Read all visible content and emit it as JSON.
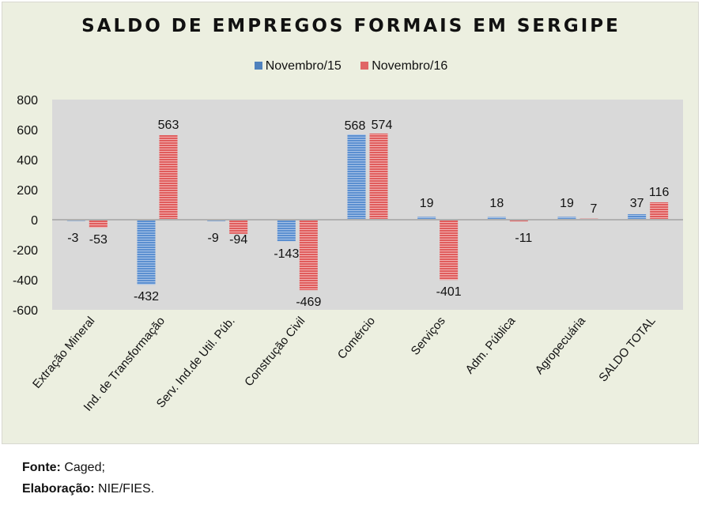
{
  "chart_data": {
    "type": "bar",
    "title": "SALDO DE EMPREGOS FORMAIS EM SERGIPE",
    "xlabel": "",
    "ylabel": "",
    "ylim": [
      -600,
      800
    ],
    "yticks": [
      800,
      600,
      400,
      200,
      0,
      -200,
      -400,
      -600
    ],
    "grid": false,
    "legend_position": "top-center",
    "categories": [
      "Extração Mineral",
      "Ind. de Transformação",
      "Serv. Ind.de Util. Púb.",
      "Construção Civil",
      "Comércio",
      "Serviços",
      "Adm. Pública",
      "Agropecuária",
      "SALDO TOTAL"
    ],
    "series": [
      {
        "name": "Novembro/15",
        "color": "#4f81bd",
        "values": [
          -3,
          -432,
          -9,
          -143,
          568,
          19,
          18,
          19,
          37
        ]
      },
      {
        "name": "Novembro/16",
        "color": "#e06666",
        "values": [
          -53,
          563,
          -94,
          -469,
          574,
          -401,
          -11,
          7,
          116
        ]
      }
    ]
  },
  "footer": {
    "source_label": "Fonte:",
    "source_value": "Caged;",
    "author_label": "Elaboração:",
    "author_value": "NIE/FIES."
  },
  "colors": {
    "panel_bg": "#ecefe0",
    "plot_bg": "#d9d9d9",
    "zero_line": "#b0b0b0"
  }
}
